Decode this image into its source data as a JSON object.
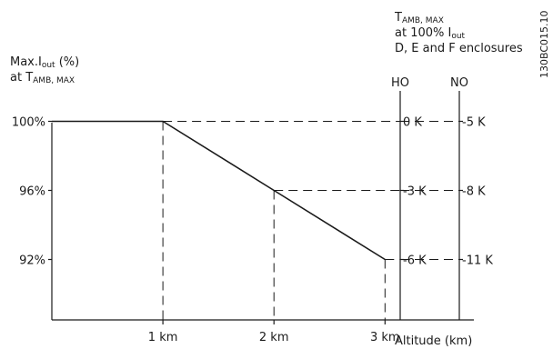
{
  "chart_data": {
    "type": "line",
    "x": [
      0,
      1,
      2,
      3
    ],
    "values": [
      100,
      100,
      96,
      92
    ],
    "x_ticks": [
      {
        "value": 1,
        "label": "1 km"
      },
      {
        "value": 2,
        "label": "2 km"
      },
      {
        "value": 3,
        "label": "3 km"
      }
    ],
    "y_ticks": [
      {
        "value": 100,
        "label": "100%"
      },
      {
        "value": 96,
        "label": "96%"
      },
      {
        "value": 92,
        "label": "92%"
      }
    ],
    "xlim": [
      0,
      3.8
    ],
    "ylim": [
      88.5,
      103.5
    ],
    "xlabel": "Altitude (km)",
    "ylabel": {
      "line1_main": "Max.I",
      "line1_sub": "out",
      "line1_tail": " (%)",
      "line2_main": "at T",
      "line2_sub": "AMB, MAX"
    },
    "right_title": {
      "line1_main": "T",
      "line1_sub": "AMB, MAX",
      "line2_main": "at 100% I",
      "line2_sub": "out",
      "line3": "D, E and F enclosures"
    },
    "ho_axis": {
      "title": "HO",
      "labels": [
        "0 K",
        "-3 K",
        "-6 K"
      ]
    },
    "no_axis": {
      "title": "NO",
      "labels": [
        "-5 K",
        "-8 K",
        "-11 K"
      ]
    },
    "drawing_id": "130BC015.10",
    "colors": {
      "line": "#1a1a1a",
      "background": "#ffffff"
    }
  }
}
